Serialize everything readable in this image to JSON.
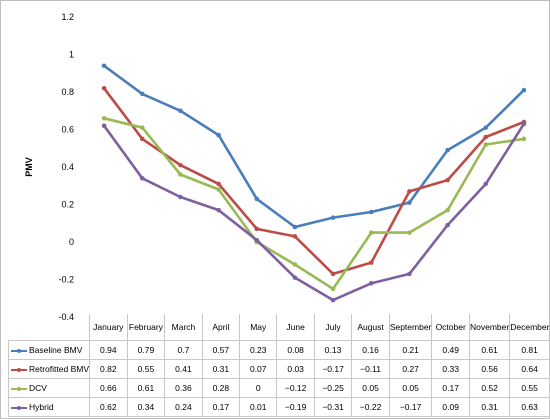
{
  "chart_data": {
    "type": "line",
    "title": "",
    "xlabel": "",
    "ylabel": "PMV",
    "ylim": [
      -0.4,
      1.2
    ],
    "yticks": [
      "1.2",
      "1",
      "0.8",
      "0.6",
      "0.4",
      "0.2",
      "0",
      "-0.2",
      "-0.4"
    ],
    "categories": [
      "January",
      "February",
      "March",
      "April",
      "May",
      "June",
      "July",
      "August",
      "September",
      "October",
      "November",
      "December"
    ],
    "grid": false,
    "legend": "data-table",
    "series": [
      {
        "name": "Baseline BMV",
        "color": "#4a7ebb",
        "values": [
          0.94,
          0.79,
          0.7,
          0.57,
          0.23,
          0.08,
          0.13,
          0.16,
          0.21,
          0.49,
          0.61,
          0.81
        ],
        "labels": [
          "0.94",
          "0.79",
          "0.7",
          "0.57",
          "0.23",
          "0.08",
          "0.13",
          "0.16",
          "0.21",
          "0.49",
          "0.61",
          "0.81"
        ]
      },
      {
        "name": "Retrofitted BMV",
        "color": "#be4b48",
        "values": [
          0.82,
          0.55,
          0.41,
          0.31,
          0.07,
          0.03,
          -0.17,
          -0.11,
          0.27,
          0.33,
          0.56,
          0.64
        ],
        "labels": [
          "0.82",
          "0.55",
          "0.41",
          "0.31",
          "0.07",
          "0.03",
          "−0.17",
          "−0.11",
          "0.27",
          "0.33",
          "0.56",
          "0.64"
        ]
      },
      {
        "name": "DCV",
        "color": "#98b954",
        "values": [
          0.66,
          0.61,
          0.36,
          0.28,
          0,
          -0.12,
          -0.25,
          0.05,
          0.05,
          0.17,
          0.52,
          0.55
        ],
        "labels": [
          "0.66",
          "0.61",
          "0.36",
          "0.28",
          "0",
          "−0.12",
          "−0.25",
          "0.05",
          "0.05",
          "0.17",
          "0.52",
          "0.55"
        ]
      },
      {
        "name": "Hybrid",
        "color": "#7d60a0",
        "values": [
          0.62,
          0.34,
          0.24,
          0.17,
          0.01,
          -0.19,
          -0.31,
          -0.22,
          -0.17,
          0.09,
          0.31,
          0.63
        ],
        "labels": [
          "0.62",
          "0.34",
          "0.24",
          "0.17",
          "0.01",
          "−0.19",
          "−0.31",
          "−0.22",
          "−0.17",
          "0.09",
          "0.31",
          "0.63"
        ]
      }
    ]
  }
}
